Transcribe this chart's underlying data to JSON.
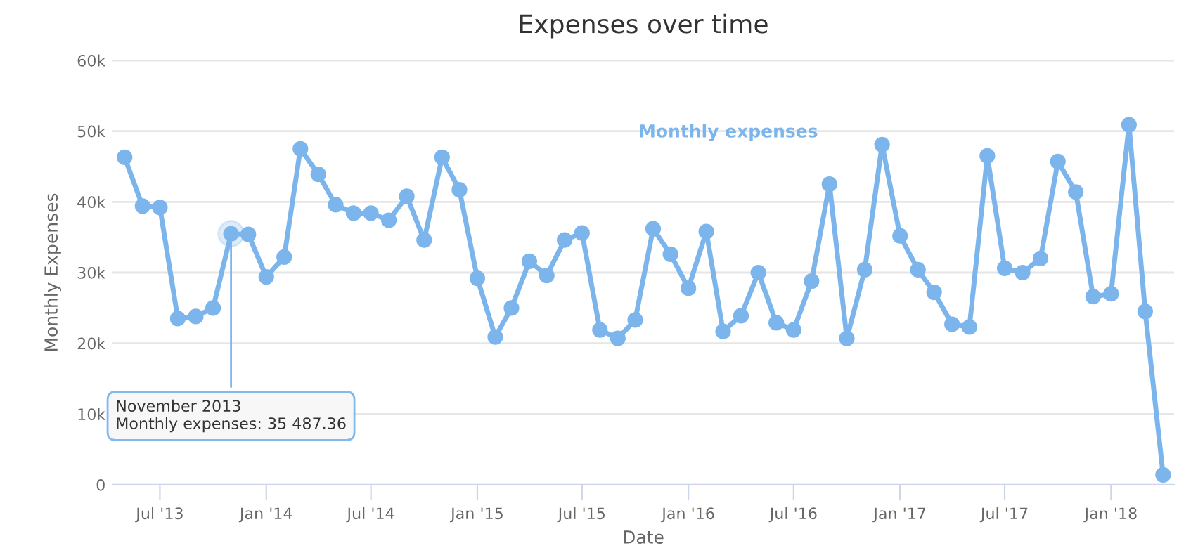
{
  "chart_data": {
    "type": "line",
    "title": "Expenses over time",
    "xlabel": "Date",
    "ylabel": "Monthly Expenses",
    "x": [
      "2013-05",
      "2013-06",
      "2013-07",
      "2013-08",
      "2013-09",
      "2013-10",
      "2013-11",
      "2013-12",
      "2014-01",
      "2014-02",
      "2014-03",
      "2014-04",
      "2014-05",
      "2014-06",
      "2014-07",
      "2014-08",
      "2014-09",
      "2014-10",
      "2014-11",
      "2014-12",
      "2015-01",
      "2015-02",
      "2015-03",
      "2015-04",
      "2015-05",
      "2015-06",
      "2015-07",
      "2015-08",
      "2015-09",
      "2015-10",
      "2015-11",
      "2015-12",
      "2016-01",
      "2016-02",
      "2016-03",
      "2016-04",
      "2016-05",
      "2016-06",
      "2016-07",
      "2016-08",
      "2016-09",
      "2016-10",
      "2016-11",
      "2016-12",
      "2017-01",
      "2017-02",
      "2017-03",
      "2017-04",
      "2017-05",
      "2017-06",
      "2017-07",
      "2017-08",
      "2017-09",
      "2017-10",
      "2017-11",
      "2017-12",
      "2018-01",
      "2018-02",
      "2018-03",
      "2018-04"
    ],
    "series": [
      {
        "name": "Monthly expenses",
        "color": "#7cb5ec",
        "values": [
          46300,
          39400,
          39200,
          23500,
          23800,
          25000,
          35487.36,
          35400,
          29400,
          32200,
          47500,
          43900,
          39600,
          38400,
          38400,
          37400,
          40800,
          34600,
          46300,
          41700,
          29200,
          20900,
          25000,
          31600,
          29600,
          34600,
          35600,
          21900,
          20700,
          23300,
          36200,
          32600,
          27800,
          35800,
          21700,
          23900,
          30000,
          22900,
          21900,
          28800,
          42500,
          20700,
          30400,
          48100,
          35200,
          30400,
          27200,
          22700,
          22300,
          46500,
          30600,
          30000,
          32000,
          45700,
          41400,
          26600,
          27000,
          50900,
          24500,
          1400
        ]
      }
    ],
    "xlim": [
      "2013-04-10",
      "2018-04-20"
    ],
    "xticks": [
      {
        "value": "2013-07-01",
        "label": "Jul '13"
      },
      {
        "value": "2014-01-01",
        "label": "Jan '14"
      },
      {
        "value": "2014-07-01",
        "label": "Jul '14"
      },
      {
        "value": "2015-01-01",
        "label": "Jan '15"
      },
      {
        "value": "2015-07-01",
        "label": "Jul '15"
      },
      {
        "value": "2016-01-01",
        "label": "Jan '16"
      },
      {
        "value": "2016-07-01",
        "label": "Jul '16"
      },
      {
        "value": "2017-01-01",
        "label": "Jan '17"
      },
      {
        "value": "2017-07-01",
        "label": "Jul '17"
      },
      {
        "value": "2018-01-01",
        "label": "Jan '18"
      }
    ],
    "ylim": [
      0,
      60000
    ],
    "yticks": [
      0,
      {
        "value": 10000,
        "label": "10k"
      },
      {
        "value": 20000,
        "label": "20k"
      },
      {
        "value": 30000,
        "label": "30k"
      },
      {
        "value": 40000,
        "label": "40k"
      },
      {
        "value": 50000,
        "label": "50k"
      },
      {
        "value": 60000,
        "label": "60k"
      }
    ],
    "grid": "y",
    "legend": false,
    "marker": "circle",
    "line_style": "solid",
    "annotations": [
      {
        "text": "November 2013\nMonthly expenses: 35 487.36",
        "x": "2013-11",
        "y": 35487.36
      }
    ]
  }
}
